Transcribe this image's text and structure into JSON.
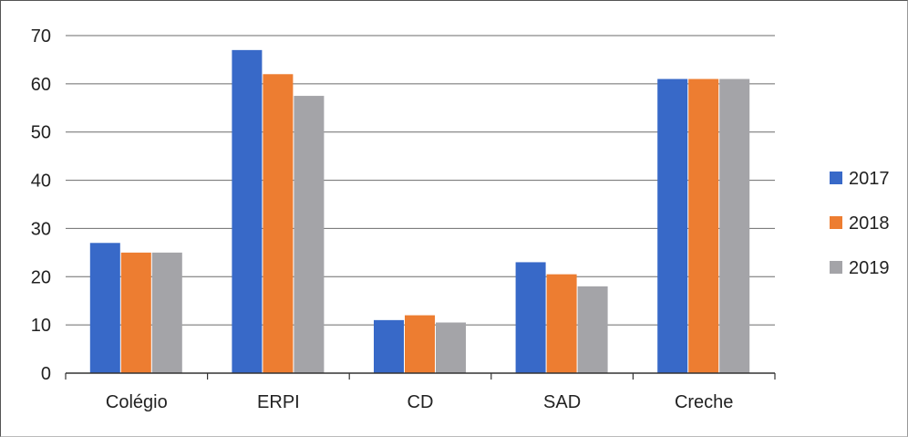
{
  "chart_data": {
    "type": "bar",
    "categories": [
      "Colégio",
      "ERPI",
      "CD",
      "SAD",
      "Creche"
    ],
    "series": [
      {
        "name": "2017",
        "color": "#3869c8",
        "values": [
          27,
          67,
          11,
          23,
          61
        ]
      },
      {
        "name": "2018",
        "color": "#ed7d31",
        "values": [
          25,
          62,
          12,
          20.5,
          61
        ]
      },
      {
        "name": "2019",
        "color": "#a4a4a8",
        "values": [
          25,
          57.5,
          10.5,
          18,
          61
        ]
      }
    ],
    "ylim": [
      0,
      70
    ],
    "yticks": [
      0,
      10,
      20,
      30,
      40,
      50,
      60,
      70
    ],
    "grid": true,
    "legend_position": "right"
  }
}
